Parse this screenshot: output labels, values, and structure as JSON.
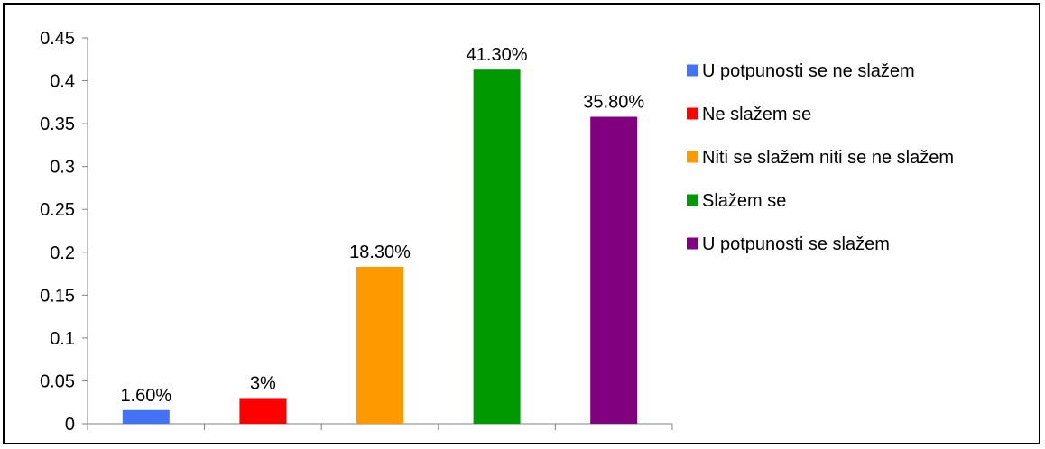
{
  "chart_data": {
    "type": "bar",
    "categories": [
      "U potpunosti se ne slažem",
      "Ne slažem se",
      "Niti se slažem niti se ne slažem",
      "Slažem se",
      "U potpunosti se slažem"
    ],
    "values": [
      0.016,
      0.03,
      0.183,
      0.413,
      0.358
    ],
    "data_labels": [
      "1.60%",
      "3%",
      "18.30%",
      "41.30%",
      "35.80%"
    ],
    "colors": [
      "#4472F4",
      "#FF0000",
      "#FF9900",
      "#009900",
      "#800080"
    ],
    "yticks": [
      "0",
      "0.05",
      "0.1",
      "0.15",
      "0.2",
      "0.25",
      "0.3",
      "0.35",
      "0.4",
      "0.45"
    ],
    "ylim": [
      0,
      0.45
    ],
    "grid": false,
    "legend": "right"
  }
}
